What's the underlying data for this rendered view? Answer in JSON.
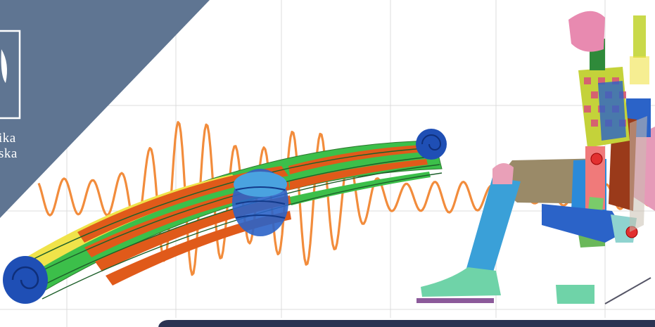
{
  "banner": {
    "logo": {
      "line1": "ika",
      "line2": "ska"
    },
    "colors": {
      "corner_panel": "#5f7592",
      "waveform": "#f28c3c",
      "grid": "#dcdcdc",
      "bottom_bar": "#2a3352",
      "spring_stress_high": "#e05a1a",
      "spring_stress_mid": "#3cbf4a",
      "spring_stress_low": "#2b63c8",
      "spring_eye": "#1f4fb5"
    },
    "illustrations": [
      "grid-lines",
      "orange-vibration-waveform",
      "fea-leaf-spring-stress-map",
      "crash-test-dummy-in-seat-model"
    ]
  }
}
